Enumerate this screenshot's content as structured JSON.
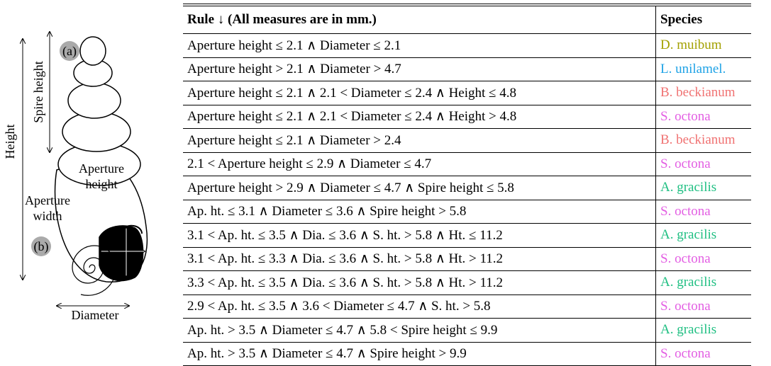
{
  "diagram": {
    "label_a": "(a)",
    "spire_height": "Spire height",
    "height": "Height",
    "aperture_height": "Aperture height",
    "aperture_width": "Aperture width",
    "label_b": "(b)",
    "diameter": "Diameter"
  },
  "table": {
    "header": [
      "Rule ↓ (All measures are in mm.)",
      "Species"
    ],
    "rows": [
      {
        "rule": "Aperture height ≤ 2.1 ∧ Diameter ≤ 2.1",
        "species": "D. muibum",
        "color": "#a3a000"
      },
      {
        "rule": "Aperture height > 2.1 ∧ Diameter > 4.7",
        "species": "L. unilamel.",
        "color": "#1ea2e6"
      },
      {
        "rule": "Aperture height ≤ 2.1 ∧ 2.1 < Diameter ≤ 2.4 ∧ Height ≤ 4.8",
        "species": "B. beckianum",
        "color": "#f07272"
      },
      {
        "rule": "Aperture height ≤ 2.1 ∧ 2.1 < Diameter ≤ 2.4 ∧ Height > 4.8",
        "species": "S. octona",
        "color": "#e35ee3"
      },
      {
        "rule": "Aperture height ≤ 2.1 ∧ Diameter > 2.4",
        "species": "B. beckianum",
        "color": "#f07272"
      },
      {
        "rule": "2.1 < Aperture height ≤ 2.9 ∧ Diameter ≤ 4.7",
        "species": "S. octona",
        "color": "#e35ee3"
      },
      {
        "rule": "Aperture height > 2.9 ∧ Diameter ≤ 4.7 ∧ Spire height ≤ 5.8",
        "species": "A. gracilis",
        "color": "#1fbf82"
      },
      {
        "rule": "Ap. ht. ≤ 3.1 ∧ Diameter ≤ 3.6 ∧ Spire height > 5.8",
        "species": "S. octona",
        "color": "#e35ee3"
      },
      {
        "rule": "3.1 < Ap. ht. ≤ 3.5 ∧ Dia. ≤ 3.6 ∧ S. ht. > 5.8 ∧ Ht. ≤ 11.2",
        "species": "A. gracilis",
        "color": "#1fbf82"
      },
      {
        "rule": "3.1 < Ap. ht. ≤ 3.3 ∧ Dia. ≤ 3.6 ∧ S. ht. > 5.8 ∧ Ht. > 11.2",
        "species": "S. octona",
        "color": "#e35ee3"
      },
      {
        "rule": "3.3 < Ap. ht. ≤ 3.5 ∧ Dia. ≤ 3.6 ∧ S. ht. > 5.8 ∧ Ht. > 11.2",
        "species": "A. gracilis",
        "color": "#1fbf82"
      },
      {
        "rule": "2.9 < Ap. ht. ≤ 3.5 ∧ 3.6 < Diameter ≤ 4.7 ∧ S. ht. > 5.8",
        "species": "S. octona",
        "color": "#e35ee3"
      },
      {
        "rule": "Ap. ht. > 3.5 ∧ Diameter ≤ 4.7 ∧ 5.8 < Spire height ≤ 9.9",
        "species": "A. gracilis",
        "color": "#1fbf82"
      },
      {
        "rule": "Ap. ht. > 3.5 ∧ Diameter ≤ 4.7 ∧ Spire height > 9.9",
        "species": "S. octona",
        "color": "#e35ee3"
      }
    ]
  }
}
